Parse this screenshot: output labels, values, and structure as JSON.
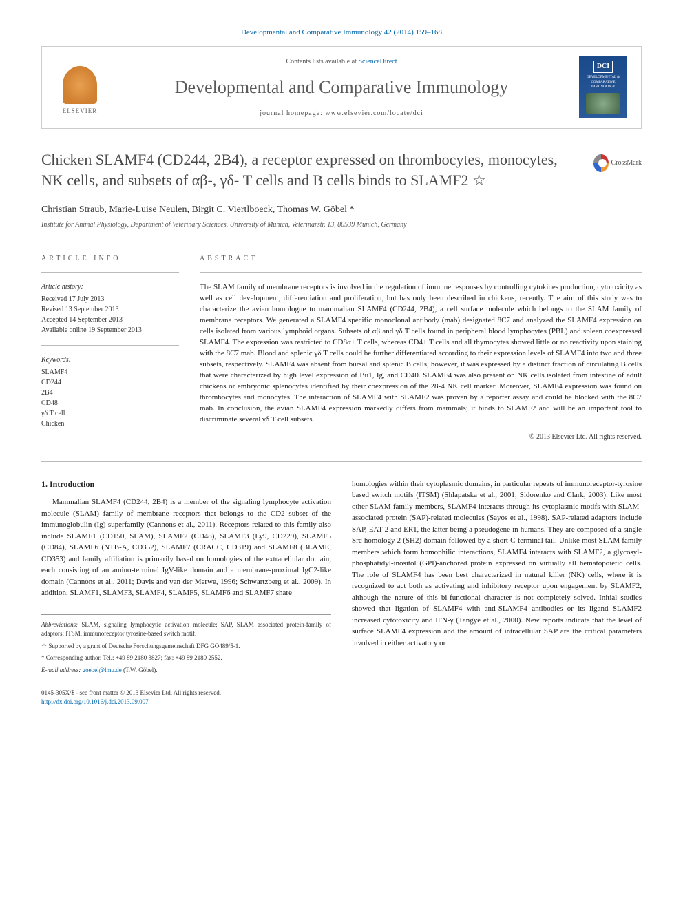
{
  "citation": "Developmental and Comparative Immunology 42 (2014) 159–168",
  "header": {
    "elsevier_label": "ELSEVIER",
    "contents_prefix": "Contents lists available at ",
    "contents_link": "ScienceDirect",
    "journal_name": "Developmental and Comparative Immunology",
    "homepage_prefix": "journal homepage: ",
    "homepage_url": "www.elsevier.com/locate/dci",
    "cover_abbrev": "DCI",
    "cover_sub": "DEVELOPMENTAL & COMPARATIVE IMMUNOLOGY"
  },
  "article": {
    "title": "Chicken SLAMF4 (CD244, 2B4), a receptor expressed on thrombocytes, monocytes, NK cells, and subsets of αβ-, γδ- T cells and B cells binds to SLAMF2 ☆",
    "crossmark_label": "CrossMark",
    "authors": "Christian Straub, Marie-Luise Neulen, Birgit C. Viertlboeck, Thomas W. Göbel *",
    "affiliation": "Institute for Animal Physiology, Department of Veterinary Sciences, University of Munich, Veterinärstr. 13, 80539 Munich, Germany"
  },
  "info": {
    "heading": "ARTICLE INFO",
    "history_label": "Article history:",
    "history": [
      "Received 17 July 2013",
      "Revised 13 September 2013",
      "Accepted 14 September 2013",
      "Available online 19 September 2013"
    ],
    "keywords_label": "Keywords:",
    "keywords": [
      "SLAMF4",
      "CD244",
      "2B4",
      "CD48",
      "γδ T cell",
      "Chicken"
    ]
  },
  "abstract": {
    "heading": "ABSTRACT",
    "text": "The SLAM family of membrane receptors is involved in the regulation of immune responses by controlling cytokines production, cytotoxicity as well as cell development, differentiation and proliferation, but has only been described in chickens, recently. The aim of this study was to characterize the avian homologue to mammalian SLAMF4 (CD244, 2B4), a cell surface molecule which belongs to the SLAM family of membrane receptors. We generated a SLAMF4 specific monoclonal antibody (mab) designated 8C7 and analyzed the SLAMF4 expression on cells isolated from various lymphoid organs. Subsets of αβ and γδ T cells found in peripheral blood lymphocytes (PBL) and spleen coexpressed SLAMF4. The expression was restricted to CD8α+ T cells, whereas CD4+ T cells and all thymocytes showed little or no reactivity upon staining with the 8C7 mab. Blood and splenic γδ T cells could be further differentiated according to their expression levels of SLAMF4 into two and three subsets, respectively. SLAMF4 was absent from bursal and splenic B cells, however, it was expressed by a distinct fraction of circulating B cells that were characterized by high level expression of Bu1, Ig, and CD40. SLAMF4 was also present on NK cells isolated from intestine of adult chickens or embryonic splenocytes identified by their coexpression of the 28-4 NK cell marker. Moreover, SLAMF4 expression was found on thrombocytes and monocytes. The interaction of SLAMF4 with SLAMF2 was proven by a reporter assay and could be blocked with the 8C7 mab. In conclusion, the avian SLAMF4 expression markedly differs from mammals; it binds to SLAMF2 and will be an important tool to discriminate several γδ T cell subsets.",
    "copyright": "© 2013 Elsevier Ltd. All rights reserved."
  },
  "intro": {
    "heading": "1. Introduction",
    "col1": "Mammalian SLAMF4 (CD244, 2B4) is a member of the signaling lymphocyte activation molecule (SLAM) family of membrane receptors that belongs to the CD2 subset of the immunoglobulin (Ig) superfamily (Cannons et al., 2011). Receptors related to this family also include SLAMF1 (CD150, SLAM), SLAMF2 (CD48), SLAMF3 (Ly9, CD229), SLAMF5 (CD84), SLAMF6 (NTB-A, CD352), SLAMF7 (CRACC, CD319) and SLAMF8 (BLAME, CD353) and family affiliation is primarily based on homologies of the extracellular domain, each consisting of an amino-terminal IgV-like domain and a membrane-proximal IgC2-like domain (Cannons et al., 2011; Davis and van der Merwe, 1996; Schwartzberg et al., 2009). In addition, SLAMF1, SLAMF3, SLAMF4, SLAMF5, SLAMF6 and SLAMF7 share",
    "col2": "homologies within their cytoplasmic domains, in particular repeats of immunoreceptor-tyrosine based switch motifs (ITSM) (Shlapatska et al., 2001; Sidorenko and Clark, 2003). Like most other SLAM family members, SLAMF4 interacts through its cytoplasmic motifs with SLAM-associated protein (SAP)-related molecules (Sayos et al., 1998). SAP-related adaptors include SAP, EAT-2 and ERT, the latter being a pseudogene in humans. They are composed of a single Src homology 2 (SH2) domain followed by a short C-terminal tail. Unlike most SLAM family members which form homophilic interactions, SLAMF4 interacts with SLAMF2, a glycosyl-phosphatidyl-inositol (GPI)-anchored protein expressed on virtually all hematopoietic cells. The role of SLAMF4 has been best characterized in natural killer (NK) cells, where it is recognized to act both as activating and inhibitory receptor upon engagement by SLAMF2, although the nature of this bi-functional character is not completely solved. Initial studies showed that ligation of SLAMF4 with anti-SLAMF4 antibodies or its ligand SLAMF2 increased cytotoxicity and IFN-γ (Tangye et al., 2000). New reports indicate that the level of surface SLAMF4 expression and the amount of intracellular SAP are the critical parameters involved in either activatory or"
  },
  "footnotes": {
    "abbrev_label": "Abbreviations:",
    "abbrev": " SLAM, signaling lymphocytic activation molecule; SAP, SLAM associated protein-family of adaptors; ITSM, immunoreceptor tyrosine-based switch motif.",
    "star": "☆ Supported by a grant of Deutsche Forschungsgemeinschaft DFG GO489/5-1.",
    "corr": "* Corresponding author. Tel.: +49 89 2180 3827; fax: +49 89 2180 2552.",
    "email_label": "E-mail address: ",
    "email": "goebel@lmu.de",
    "email_suffix": " (T.W. Göbel)."
  },
  "footer": {
    "issn": "0145-305X/$ - see front matter © 2013 Elsevier Ltd. All rights reserved.",
    "doi": "http://dx.doi.org/10.1016/j.dci.2013.09.007"
  },
  "colors": {
    "link": "#0066aa",
    "text": "#333333",
    "heading": "#4a4a4a",
    "border": "#cccccc",
    "cover_bg": "#1a4a8a"
  }
}
